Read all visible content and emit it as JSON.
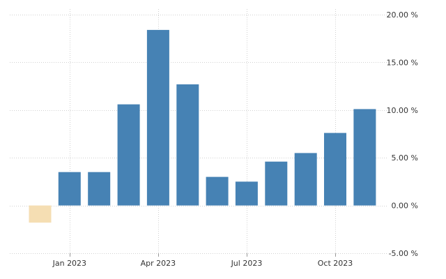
{
  "chart_data": {
    "type": "bar",
    "title": "",
    "xlabel": "",
    "ylabel": "",
    "x": [
      "2022-12",
      "2023-01",
      "2023-02",
      "2023-03",
      "2023-04",
      "2023-05",
      "2023-06",
      "2023-07",
      "2023-08",
      "2023-09",
      "2023-10",
      "2023-11"
    ],
    "values": [
      -1.8,
      3.5,
      3.5,
      10.6,
      18.4,
      12.7,
      3.0,
      2.5,
      4.6,
      5.5,
      7.6,
      10.1
    ],
    "ylim": [
      -5,
      20
    ],
    "y_ticks": [
      20,
      15,
      10,
      5,
      0,
      -5
    ],
    "y_tick_labels": [
      "20.00 %",
      "15.00 %",
      "10.00 %",
      "5.00 %",
      "0.00 %",
      "-5.00 %"
    ],
    "x_tick_labels": [
      {
        "label": "Jan 2023",
        "at": "2023-01"
      },
      {
        "label": "Apr 2023",
        "at": "2023-04"
      },
      {
        "label": "Jul 2023",
        "at": "2023-07"
      },
      {
        "label": "Oct 2023",
        "at": "2023-10"
      }
    ],
    "grid": true,
    "y_axis_side": "right",
    "colors": {
      "positive": "#4682b4",
      "negative": "#f5deb3",
      "grid": "#d0d0d0",
      "text": "#333333"
    }
  }
}
